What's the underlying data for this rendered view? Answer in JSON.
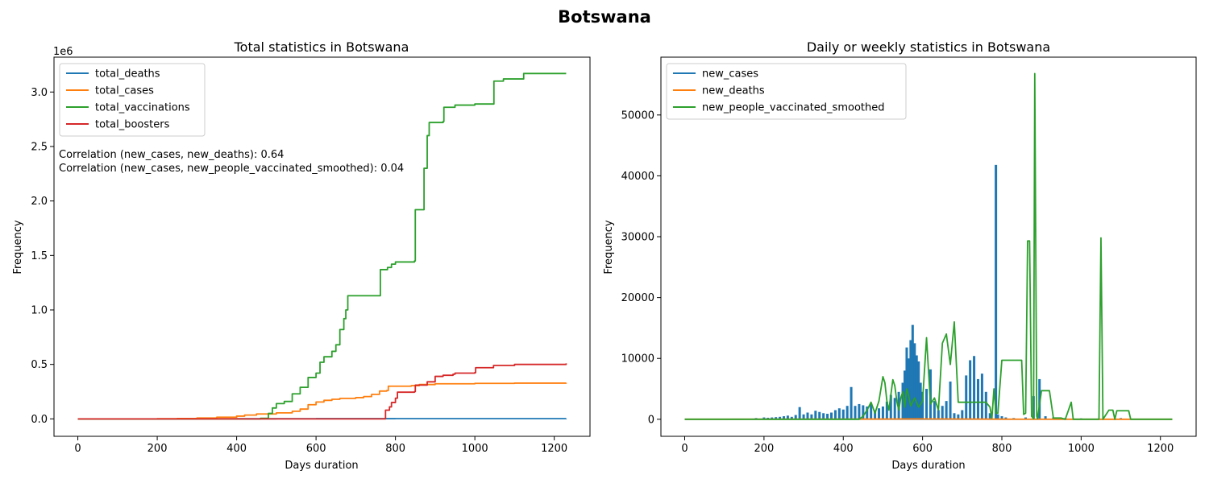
{
  "figure": {
    "title": "Botswana"
  },
  "chart_data": [
    {
      "type": "line",
      "title": "Total statistics in Botswana",
      "xlabel": "Days duration",
      "ylabel": "Frequency",
      "y_offset_label": "1e6",
      "xlim": [
        -60,
        1290
      ],
      "ylim": [
        -160000,
        3320000
      ],
      "xticks": [
        0,
        200,
        400,
        600,
        800,
        1000,
        1200
      ],
      "xtick_labels": [
        "0",
        "200",
        "400",
        "600",
        "800",
        "1000",
        "1200"
      ],
      "yticks": [
        0,
        500000,
        1000000,
        1500000,
        2000000,
        2500000,
        3000000
      ],
      "ytick_labels": [
        "0.0",
        "0.5",
        "1.0",
        "1.5",
        "2.0",
        "2.5",
        "3.0"
      ],
      "legend_position": "top-left",
      "annotations": [
        "Correlation (new_cases, new_deaths): 0.64",
        "Correlation (new_cases, new_people_vaccinated_smoothed): 0.04"
      ],
      "series": [
        {
          "name": "total_deaths",
          "color": "#1f77b4",
          "step": true,
          "points": [
            [
              0,
              0
            ],
            [
              300,
              500
            ],
            [
              400,
              1000
            ],
            [
              500,
              1500
            ],
            [
              600,
              2200
            ],
            [
              800,
              2700
            ],
            [
              1230,
              2800
            ]
          ]
        },
        {
          "name": "total_cases",
          "color": "#ff7f0e",
          "step": true,
          "points": [
            [
              0,
              0
            ],
            [
              200,
              1000
            ],
            [
              250,
              3000
            ],
            [
              300,
              8000
            ],
            [
              350,
              15000
            ],
            [
              400,
              25000
            ],
            [
              420,
              35000
            ],
            [
              450,
              45000
            ],
            [
              500,
              55000
            ],
            [
              540,
              70000
            ],
            [
              560,
              90000
            ],
            [
              580,
              130000
            ],
            [
              600,
              155000
            ],
            [
              620,
              170000
            ],
            [
              640,
              180000
            ],
            [
              660,
              188000
            ],
            [
              700,
              195000
            ],
            [
              720,
              205000
            ],
            [
              740,
              225000
            ],
            [
              760,
              255000
            ],
            [
              778,
              260000
            ],
            [
              782,
              300000
            ],
            [
              840,
              305000
            ],
            [
              860,
              315000
            ],
            [
              900,
              322000
            ],
            [
              1000,
              326000
            ],
            [
              1100,
              328000
            ],
            [
              1230,
              330000
            ]
          ]
        },
        {
          "name": "total_vaccinations",
          "color": "#2ca02c",
          "step": true,
          "points": [
            [
              0,
              0
            ],
            [
              450,
              0
            ],
            [
              460,
              5000
            ],
            [
              480,
              50000
            ],
            [
              490,
              100000
            ],
            [
              500,
              140000
            ],
            [
              520,
              160000
            ],
            [
              540,
              230000
            ],
            [
              560,
              290000
            ],
            [
              580,
              380000
            ],
            [
              600,
              420000
            ],
            [
              610,
              520000
            ],
            [
              620,
              570000
            ],
            [
              640,
              620000
            ],
            [
              650,
              680000
            ],
            [
              660,
              820000
            ],
            [
              670,
              920000
            ],
            [
              675,
              1000000
            ],
            [
              680,
              1130000
            ],
            [
              760,
              1130000
            ],
            [
              762,
              1370000
            ],
            [
              780,
              1390000
            ],
            [
              790,
              1420000
            ],
            [
              800,
              1440000
            ],
            [
              848,
              1450000
            ],
            [
              850,
              1920000
            ],
            [
              870,
              1920000
            ],
            [
              872,
              2300000
            ],
            [
              880,
              2600000
            ],
            [
              885,
              2720000
            ],
            [
              920,
              2730000
            ],
            [
              922,
              2860000
            ],
            [
              950,
              2880000
            ],
            [
              1000,
              2890000
            ],
            [
              1045,
              2890000
            ],
            [
              1048,
              3100000
            ],
            [
              1070,
              3100000
            ],
            [
              1072,
              3120000
            ],
            [
              1120,
              3120000
            ],
            [
              1123,
              3170000
            ],
            [
              1230,
              3170000
            ]
          ]
        },
        {
          "name": "total_boosters",
          "color": "#d62728",
          "step": true,
          "points": [
            [
              0,
              0
            ],
            [
              770,
              0
            ],
            [
              775,
              80000
            ],
            [
              785,
              110000
            ],
            [
              790,
              150000
            ],
            [
              800,
              190000
            ],
            [
              805,
              245000
            ],
            [
              848,
              250000
            ],
            [
              850,
              310000
            ],
            [
              880,
              340000
            ],
            [
              900,
              390000
            ],
            [
              920,
              400000
            ],
            [
              945,
              410000
            ],
            [
              950,
              420000
            ],
            [
              1000,
              425000
            ],
            [
              1002,
              470000
            ],
            [
              1045,
              470000
            ],
            [
              1047,
              490000
            ],
            [
              1100,
              500000
            ],
            [
              1230,
              510000
            ]
          ]
        }
      ]
    },
    {
      "type": "line",
      "title": "Daily or weekly statistics in Botswana",
      "xlabel": "Days duration",
      "ylabel": "Frequency",
      "xlim": [
        -60,
        1290
      ],
      "ylim": [
        -2800,
        59500
      ],
      "xticks": [
        0,
        200,
        400,
        600,
        800,
        1000,
        1200
      ],
      "xtick_labels": [
        "0",
        "200",
        "400",
        "600",
        "800",
        "1000",
        "1200"
      ],
      "yticks": [
        0,
        10000,
        20000,
        30000,
        40000,
        50000
      ],
      "ytick_labels": [
        "0",
        "10000",
        "20000",
        "30000",
        "40000",
        "50000"
      ],
      "legend_position": "top-left",
      "series": [
        {
          "name": "new_cases",
          "color": "#1f77b4",
          "style": "spikes",
          "points": [
            [
              180,
              200
            ],
            [
              200,
              300
            ],
            [
              210,
              250
            ],
            [
              220,
              300
            ],
            [
              230,
              350
            ],
            [
              240,
              400
            ],
            [
              250,
              500
            ],
            [
              260,
              600
            ],
            [
              270,
              400
            ],
            [
              280,
              700
            ],
            [
              290,
              2000
            ],
            [
              300,
              800
            ],
            [
              310,
              1100
            ],
            [
              320,
              800
            ],
            [
              330,
              1400
            ],
            [
              340,
              1200
            ],
            [
              350,
              1000
            ],
            [
              360,
              900
            ],
            [
              370,
              1100
            ],
            [
              380,
              1500
            ],
            [
              390,
              1800
            ],
            [
              400,
              1600
            ],
            [
              410,
              2200
            ],
            [
              420,
              5300
            ],
            [
              430,
              2200
            ],
            [
              440,
              2500
            ],
            [
              450,
              2300
            ],
            [
              460,
              2100
            ],
            [
              470,
              2600
            ],
            [
              480,
              1500
            ],
            [
              490,
              1800
            ],
            [
              500,
              2100
            ],
            [
              510,
              2900
            ],
            [
              520,
              4000
            ],
            [
              530,
              3500
            ],
            [
              540,
              4500
            ],
            [
              550,
              6000
            ],
            [
              555,
              8000
            ],
            [
              560,
              11800
            ],
            [
              565,
              10000
            ],
            [
              570,
              13000
            ],
            [
              575,
              15500
            ],
            [
              580,
              12500
            ],
            [
              585,
              10500
            ],
            [
              590,
              9500
            ],
            [
              595,
              6000
            ],
            [
              600,
              4500
            ],
            [
              610,
              5000
            ],
            [
              620,
              8200
            ],
            [
              630,
              3000
            ],
            [
              640,
              1500
            ],
            [
              650,
              2200
            ],
            [
              660,
              3000
            ],
            [
              670,
              6200
            ],
            [
              680,
              1000
            ],
            [
              690,
              800
            ],
            [
              700,
              1500
            ],
            [
              710,
              7200
            ],
            [
              720,
              9700
            ],
            [
              730,
              10400
            ],
            [
              740,
              6600
            ],
            [
              750,
              7500
            ],
            [
              760,
              4500
            ],
            [
              770,
              1000
            ],
            [
              785,
              41800
            ],
            [
              790,
              800
            ],
            [
              800,
              500
            ],
            [
              810,
              300
            ],
            [
              830,
              200
            ],
            [
              860,
              300
            ],
            [
              880,
              3800
            ],
            [
              895,
              6600
            ],
            [
              910,
              500
            ],
            [
              930,
              300
            ],
            [
              960,
              200
            ],
            [
              1000,
              150
            ],
            [
              1100,
              200
            ],
            [
              1230,
              0
            ]
          ]
        },
        {
          "name": "new_deaths",
          "color": "#ff7f0e",
          "points": [
            [
              0,
              0
            ],
            [
              400,
              20
            ],
            [
              600,
              60
            ],
            [
              700,
              40
            ],
            [
              800,
              20
            ],
            [
              900,
              10
            ],
            [
              1000,
              5
            ],
            [
              1230,
              0
            ]
          ]
        },
        {
          "name": "new_people_vaccinated_smoothed",
          "color": "#2ca02c",
          "points": [
            [
              0,
              0
            ],
            [
              440,
              0
            ],
            [
              450,
              500
            ],
            [
              460,
              1500
            ],
            [
              470,
              2800
            ],
            [
              480,
              1000
            ],
            [
              490,
              3000
            ],
            [
              500,
              7000
            ],
            [
              505,
              6000
            ],
            [
              510,
              3000
            ],
            [
              515,
              1500
            ],
            [
              520,
              4000
            ],
            [
              525,
              6500
            ],
            [
              530,
              5500
            ],
            [
              535,
              3000
            ],
            [
              540,
              1500
            ],
            [
              545,
              3500
            ],
            [
              550,
              4500
            ],
            [
              555,
              2000
            ],
            [
              560,
              5000
            ],
            [
              565,
              3800
            ],
            [
              570,
              2200
            ],
            [
              580,
              3500
            ],
            [
              590,
              2000
            ],
            [
              600,
              3000
            ],
            [
              610,
              13400
            ],
            [
              620,
              2500
            ],
            [
              630,
              3500
            ],
            [
              640,
              1500
            ],
            [
              650,
              12500
            ],
            [
              660,
              14000
            ],
            [
              670,
              9000
            ],
            [
              680,
              16000
            ],
            [
              690,
              2800
            ],
            [
              760,
              2800
            ],
            [
              770,
              2000
            ],
            [
              775,
              200
            ],
            [
              780,
              5000
            ],
            [
              785,
              1000
            ],
            [
              790,
              1000
            ],
            [
              800,
              9700
            ],
            [
              850,
              9700
            ],
            [
              855,
              800
            ],
            [
              860,
              1000
            ],
            [
              865,
              29300
            ],
            [
              870,
              29300
            ],
            [
              875,
              500
            ],
            [
              880,
              100
            ],
            [
              883,
              56800
            ],
            [
              888,
              500
            ],
            [
              890,
              100
            ],
            [
              900,
              4700
            ],
            [
              920,
              4700
            ],
            [
              930,
              200
            ],
            [
              950,
              200
            ],
            [
              960,
              0
            ],
            [
              975,
              2800
            ],
            [
              980,
              0
            ],
            [
              1045,
              0
            ],
            [
              1050,
              29800
            ],
            [
              1055,
              0
            ],
            [
              1070,
              1500
            ],
            [
              1080,
              1500
            ],
            [
              1085,
              0
            ],
            [
              1090,
              1400
            ],
            [
              1120,
              1400
            ],
            [
              1125,
              0
            ],
            [
              1230,
              0
            ]
          ]
        }
      ]
    }
  ]
}
